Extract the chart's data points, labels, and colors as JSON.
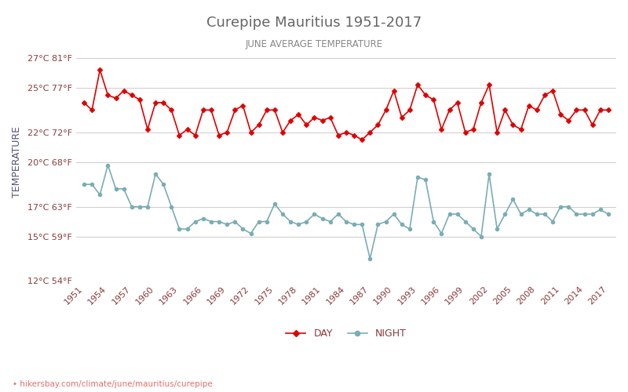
{
  "title": "Curepipe Mauritius 1951-2017",
  "subtitle": "JUNE AVERAGE TEMPERATURE",
  "ylabel": "TEMPERATURE",
  "xlabel_url": "hikersbay.com/climate/june/mauritius/curepipe",
  "years": [
    1951,
    1952,
    1953,
    1954,
    1955,
    1956,
    1957,
    1958,
    1959,
    1960,
    1961,
    1962,
    1963,
    1964,
    1965,
    1966,
    1967,
    1968,
    1969,
    1970,
    1971,
    1972,
    1973,
    1974,
    1975,
    1976,
    1977,
    1978,
    1979,
    1980,
    1981,
    1982,
    1983,
    1984,
    1985,
    1986,
    1987,
    1988,
    1989,
    1990,
    1991,
    1992,
    1993,
    1994,
    1995,
    1996,
    1997,
    1998,
    1999,
    2000,
    2001,
    2002,
    2003,
    2004,
    2005,
    2006,
    2007,
    2008,
    2009,
    2010,
    2011,
    2012,
    2013,
    2014,
    2015,
    2016,
    2017
  ],
  "day_temps": [
    24.0,
    23.5,
    26.2,
    24.5,
    24.3,
    24.8,
    24.5,
    24.2,
    22.2,
    24.0,
    24.0,
    23.5,
    21.8,
    22.2,
    21.8,
    23.5,
    23.5,
    21.8,
    22.0,
    23.5,
    23.8,
    22.0,
    22.5,
    23.5,
    23.5,
    22.0,
    22.8,
    23.2,
    22.5,
    23.0,
    22.8,
    23.0,
    21.8,
    22.0,
    21.8,
    21.5,
    22.0,
    22.5,
    23.5,
    24.8,
    23.0,
    23.5,
    25.2,
    24.5,
    24.2,
    22.2,
    23.5,
    24.0,
    22.0,
    22.2,
    24.0,
    25.2,
    22.0,
    23.5,
    22.5,
    22.2,
    23.8,
    23.5,
    24.5,
    24.8,
    23.2,
    22.8,
    23.5,
    23.5,
    22.5,
    23.5,
    23.5
  ],
  "night_temps": [
    18.5,
    18.5,
    17.8,
    19.8,
    18.2,
    18.2,
    17.0,
    17.0,
    17.0,
    19.2,
    18.5,
    17.0,
    15.5,
    15.5,
    16.0,
    16.2,
    16.0,
    16.0,
    15.8,
    16.0,
    15.5,
    15.2,
    16.0,
    16.0,
    17.2,
    16.5,
    16.0,
    15.8,
    16.0,
    16.5,
    16.2,
    16.0,
    16.5,
    16.0,
    15.8,
    15.8,
    13.5,
    15.8,
    16.0,
    16.5,
    15.8,
    15.5,
    19.0,
    18.8,
    16.0,
    15.2,
    16.5,
    16.5,
    16.0,
    15.5,
    15.0,
    19.2,
    15.5,
    16.5,
    17.5,
    16.5,
    16.8,
    16.5,
    16.5,
    16.0,
    17.0,
    17.0,
    16.5,
    16.5,
    16.5,
    16.8,
    16.5
  ],
  "day_color": "#e00000",
  "night_color": "#7aadb5",
  "day_marker": "D",
  "night_marker": "o",
  "marker_size": 3,
  "ylim_min": 12,
  "ylim_max": 28,
  "yticks_c": [
    12,
    15,
    17,
    20,
    22,
    25,
    27
  ],
  "yticks_f": [
    54,
    59,
    63,
    68,
    72,
    77,
    81
  ],
  "background_color": "#ffffff",
  "grid_color": "#cccccc",
  "title_color": "#666666",
  "subtitle_color": "#888888",
  "label_color": "#8B3A3A",
  "ylabel_color": "#555577"
}
